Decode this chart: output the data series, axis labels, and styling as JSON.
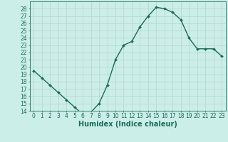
{
  "x": [
    0,
    1,
    2,
    3,
    4,
    5,
    6,
    7,
    8,
    9,
    10,
    11,
    12,
    13,
    14,
    15,
    16,
    17,
    18,
    19,
    20,
    21,
    22,
    23
  ],
  "y": [
    19.5,
    18.5,
    17.5,
    16.5,
    15.5,
    14.5,
    13.5,
    13.8,
    15.0,
    17.5,
    21.0,
    23.0,
    23.5,
    25.5,
    27.0,
    28.2,
    28.0,
    27.5,
    26.5,
    24.0,
    22.5,
    22.5,
    22.5,
    21.5
  ],
  "xlabel": "Humidex (Indice chaleur)",
  "ylabel": "",
  "ylim": [
    14,
    29
  ],
  "yticks": [
    14,
    15,
    16,
    17,
    18,
    19,
    20,
    21,
    22,
    23,
    24,
    25,
    26,
    27,
    28
  ],
  "xlim": [
    -0.5,
    23.5
  ],
  "line_color": "#1a6b5a",
  "marker": "D",
  "marker_size": 2.0,
  "bg_color": "#cceee8",
  "grid_color": "#b5d5cf",
  "tick_label_fontsize": 5.5,
  "xlabel_fontsize": 7,
  "line_width": 1.0
}
